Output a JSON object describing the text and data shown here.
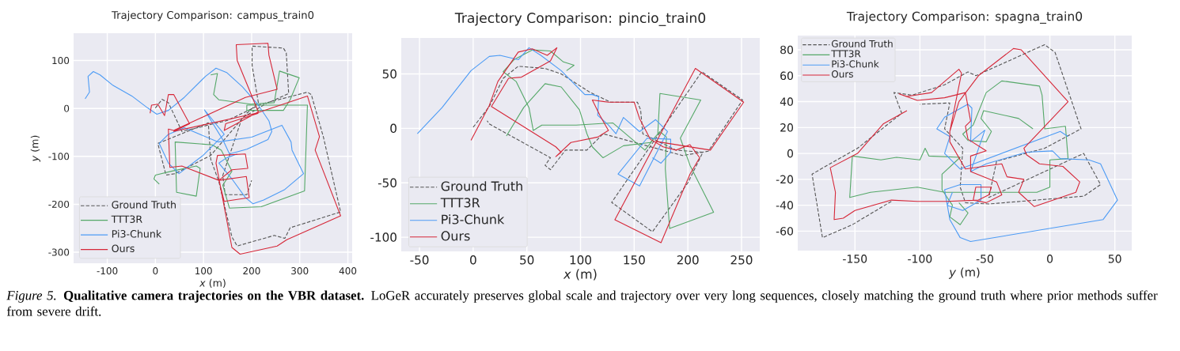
{
  "chart_data": [
    {
      "type": "line",
      "title": "Trajectory Comparison: campus_train0",
      "xlabel": "*x* (m)",
      "ylabel": "*y* (m)",
      "xlim": [
        -170,
        409
      ],
      "ylim": [
        -323,
        157
      ],
      "xticks": [
        -100,
        0,
        100,
        200,
        300,
        400
      ],
      "yticks": [
        -300,
        -200,
        -100,
        0,
        100
      ],
      "grid": true,
      "legend": "bottom left",
      "annotations": [
        "*Figure 5.* **Qualitative camera trajectories on the VBR dataset.** LoGeR accurately preserves global scale and trajectory over very long sequences, closely matching the ground truth where prior methods suffer from severe drift."
      ],
      "series": [
        {
          "name": "Ground Truth",
          "color": "#555555",
          "line_style": "dashed",
          "x": [
            0,
            14,
            27,
            55,
            150,
            220,
            316,
            324,
            349,
            385,
            280,
            269,
            247,
            170,
            159,
            132,
            115,
            110,
            5,
            22,
            41,
            115,
            190,
            214,
            201,
            201,
            266,
            272,
            277,
            230,
            180,
            140,
            145,
            190,
            200
          ],
          "values": [
            1,
            19,
            12,
            -48,
            -25,
            9,
            34,
            29,
            -59,
            -216,
            -249,
            -271,
            -265,
            -287,
            -268,
            -153,
            -106,
            -30,
            -73,
            -139,
            -136,
            -98,
            -10,
            12,
            90,
            130,
            126,
            116,
            31,
            10,
            -20,
            -140,
            -180,
            -180,
            -150
          ]
        },
        {
          "name": "TTT3R",
          "color": "#55a868",
          "line_style": "solid",
          "x": [
            8,
            -3,
            0,
            33,
            85,
            93,
            85,
            44,
            41,
            118,
            137,
            159,
            140,
            154,
            220,
            310,
            316,
            190,
            190,
            266,
            280,
            299,
            258,
            247,
            198,
            132,
            121,
            129,
            115
          ],
          "values": [
            -158,
            -147,
            -139,
            -131,
            -120,
            -125,
            -183,
            -175,
            -70,
            -76,
            -87,
            -131,
            -160,
            -208,
            -205,
            -172,
            7,
            7,
            -4,
            -4,
            18,
            64,
            78,
            12,
            9,
            18,
            29,
            73,
            70
          ]
        },
        {
          "name": "Pi3-Chunk",
          "color": "#4c9bf5",
          "line_style": "solid",
          "x": [
            -146,
            -137,
            -140,
            -129,
            -115,
            -88,
            -49,
            -16,
            3,
            27,
            60,
            104,
            126,
            148,
            181,
            214,
            236,
            242,
            234,
            190,
            154,
            140,
            102,
            143,
            99,
            49,
            27,
            8,
            27,
            60,
            130,
            200,
            263,
            282,
            284,
            308,
            269,
            225,
            203,
            187,
            159,
            132,
            148,
            170
          ],
          "values": [
            20,
            34,
            67,
            77,
            70,
            48,
            26,
            1,
            -12,
            -4,
            23,
            67,
            84,
            75,
            45,
            7,
            -26,
            -48,
            -65,
            -85,
            -95,
            -65,
            -3,
            -54,
            -98,
            -136,
            -114,
            -73,
            -54,
            -40,
            -70,
            -60,
            -35,
            -70,
            -87,
            -136,
            -169,
            -191,
            -199,
            -186,
            -147,
            -114,
            -103,
            -95
          ]
        },
        {
          "name": "Ours",
          "color": "#d62738",
          "line_style": "solid",
          "x": [
            -11,
            -8,
            5,
            19,
            27,
            38,
            71,
            38,
            209,
            316,
            341,
            332,
            385,
            273,
            253,
            176,
            159,
            126,
            129,
            187,
            192,
            159,
            132,
            189,
            195,
            143,
            132,
            55,
            30,
            27,
            38,
            187,
            253,
            236,
            234,
            168,
            170,
            214,
            143,
            146,
            214
          ],
          "values": [
            -10,
            7,
            9,
            -15,
            29,
            29,
            -32,
            -48,
            -10,
            26,
            -59,
            -87,
            -224,
            -274,
            -287,
            -304,
            -290,
            -114,
            -98,
            -95,
            -125,
            -128,
            -150,
            -142,
            -186,
            -194,
            -150,
            -120,
            -123,
            -43,
            -46,
            23,
            40,
            111,
            136,
            133,
            100,
            -7,
            -46,
            -32,
            -10
          ]
        }
      ]
    },
    {
      "type": "line",
      "title": "Trajectory Comparison: pincio_train0",
      "xlabel": "*x* (m)",
      "xlim": [
        -67,
        267
      ],
      "ylim": [
        -113,
        83
      ],
      "xticks": [
        -50,
        0,
        50,
        100,
        150,
        200,
        250
      ],
      "yticks": [
        -100,
        -50,
        0,
        50
      ],
      "grid": true,
      "legend": "bottom left",
      "series": [
        {
          "name": "Ground Truth",
          "color": "#555555",
          "line_style": "dashed",
          "x": [
            0,
            15,
            28,
            42,
            67,
            82,
            109,
            128,
            153,
            156,
            158,
            189,
            214,
            200,
            167,
            129,
            213,
            251,
            219,
            195,
            121,
            106,
            86,
            72,
            67,
            72,
            15,
            13
          ],
          "values": [
            1,
            20,
            46,
            57,
            55,
            50,
            33,
            24,
            24,
            17,
            -5,
            -20,
            -22,
            -50,
            -95,
            -68,
            52,
            26,
            -21,
            -25,
            -5,
            -20,
            -20,
            -38,
            -34,
            -27,
            4,
            7
          ]
        },
        {
          "name": "TTT3R",
          "color": "#55a868",
          "line_style": "solid",
          "x": [
            31,
            47,
            67,
            82,
            99,
            106,
            111,
            121,
            140,
            165,
            174,
            180,
            179,
            183,
            224,
            202,
            193,
            212,
            174,
            172,
            160,
            130,
            96,
            64,
            56,
            52,
            40,
            28,
            38,
            55,
            72,
            84,
            94,
            87
          ],
          "values": [
            -7,
            19,
            41,
            38,
            17,
            -5,
            -17,
            -27,
            -16,
            -13,
            -3,
            -8,
            -37,
            -92,
            -77,
            -34,
            -9,
            26,
            32,
            -5,
            -20,
            5,
            3,
            3,
            -2,
            19,
            43,
            52,
            63,
            72,
            71,
            61,
            58,
            53
          ]
        },
        {
          "name": "Pi3-Chunk",
          "color": "#4c9bf5",
          "line_style": "solid",
          "x": [
            -52,
            -29,
            -2,
            15,
            25,
            42,
            52,
            63,
            82,
            104,
            111,
            117,
            116,
            126,
            133,
            140,
            155,
            170,
            181,
            155,
            135,
            162,
            184,
            184,
            175,
            167
          ],
          "values": [
            -5,
            19,
            53,
            66,
            67,
            63,
            74,
            67,
            53,
            31,
            31,
            29,
            12,
            3,
            -5,
            10,
            -3,
            8,
            -3,
            -53,
            -42,
            -9,
            -10,
            -22,
            -32,
            -27
          ]
        },
        {
          "name": "Ours",
          "color": "#d62738",
          "line_style": "solid",
          "x": [
            -2,
            15,
            23,
            42,
            55,
            69,
            78,
            72,
            45,
            33,
            17,
            77,
            82,
            77,
            91,
            116,
            126,
            118,
            111,
            126,
            150,
            155,
            165,
            177,
            189,
            202,
            211,
            202,
            175,
            132,
            207,
            252,
            221,
            170
          ],
          "values": [
            -11,
            21,
            43,
            70,
            73,
            67,
            74,
            62,
            47,
            46,
            20,
            -17,
            -22,
            -26,
            -13,
            -8,
            -2,
            12,
            26,
            24,
            24,
            9,
            -10,
            -17,
            -20,
            -15,
            -27,
            -42,
            -105,
            -84,
            55,
            24,
            -20,
            -12
          ]
        }
      ]
    },
    {
      "type": "line",
      "title": "Trajectory Comparison: spagna_train0",
      "xlabel": "*y* (m)",
      "xlim": [
        -194,
        63
      ],
      "ylim": [
        -75,
        91
      ],
      "xticks": [
        -150,
        -100,
        -50,
        0,
        50
      ],
      "yticks": [
        -60,
        -40,
        -20,
        0,
        20,
        40,
        60,
        80
      ],
      "grid": true,
      "legend": "top left",
      "series": [
        {
          "name": "Ground Truth",
          "color": "#555555",
          "line_style": "dashed",
          "x": [
            -122,
            -152,
            -175,
            -183,
            -171,
            -148,
            -114,
            -120,
            -106,
            -81,
            -63,
            -57,
            -4,
            4,
            24,
            -4,
            -41,
            -47,
            26,
            39,
            26,
            -47,
            -65,
            -69,
            -67,
            -81,
            -77,
            -100
          ],
          "values": [
            -37,
            -55,
            -65,
            -16,
            -9,
            4,
            31,
            47,
            45,
            53,
            63,
            60,
            84,
            78,
            19,
            4,
            -6,
            -34,
            0,
            -24,
            -33,
            -39,
            -38,
            -26,
            4,
            19,
            39,
            38
          ]
        },
        {
          "name": "TTT3R",
          "color": "#55a868",
          "line_style": "solid",
          "x": [
            -13,
            -24,
            -51,
            -53,
            -45,
            -49,
            -63,
            -67,
            -59,
            -49,
            -37,
            -8,
            -6,
            -4,
            12,
            14,
            0,
            0,
            -10,
            -81,
            -102,
            -138,
            -154,
            -152,
            -130,
            -118,
            -100,
            -96,
            -93,
            -69,
            -83,
            -83,
            -75,
            -77,
            -69,
            -63,
            -70
          ],
          "values": [
            19,
            27,
            33,
            27,
            17,
            9,
            10,
            15,
            22,
            47,
            56,
            52,
            45,
            19,
            21,
            -4,
            -5,
            -26,
            -30,
            -30,
            -26,
            -30,
            -34,
            -2,
            -5,
            -3,
            -5,
            4,
            -2,
            -3,
            -16,
            -28,
            -40,
            -49,
            -55,
            -46,
            -38
          ]
        },
        {
          "name": "Pi3-Chunk",
          "color": "#4c9bf5",
          "line_style": "solid",
          "x": [
            14,
            8,
            -69,
            -81,
            -77,
            -87,
            -81,
            -63,
            -60,
            -61,
            -50,
            -61,
            -49,
            -18,
            2,
            8,
            30,
            39,
            52,
            41,
            -61,
            -69,
            -77,
            -81,
            -69,
            -53,
            -53,
            -67,
            -79,
            -75
          ],
          "values": [
            13,
            17,
            -12,
            0,
            13,
            19,
            28,
            38,
            35,
            9,
            18,
            -14,
            -8,
            1,
            2,
            -4,
            -5,
            -8,
            -36,
            -51,
            -68,
            -65,
            -51,
            -28,
            -24,
            -24,
            -36,
            -44,
            -40,
            -30
          ]
        },
        {
          "name": "Ours",
          "color": "#d62738",
          "line_style": "solid",
          "x": [
            -110,
            -128,
            -148,
            -169,
            -165,
            -166,
            -159,
            -150,
            -122,
            -102,
            -79,
            -55,
            -47,
            -45,
            -57,
            -59,
            -49,
            -37,
            -41,
            -61,
            -61,
            -49,
            -63,
            -65,
            -61,
            -65,
            -81,
            -102,
            -116,
            -110,
            -91,
            -70,
            -68,
            -77,
            -77,
            -65,
            -37,
            -33,
            -20,
            -24,
            -12,
            20,
            23,
            10,
            -8,
            -18,
            -20,
            14,
            -22,
            -28,
            -55,
            -70,
            -77
          ],
          "values": [
            33,
            23,
            0,
            -11,
            -30,
            -51,
            -50,
            -44,
            -36,
            -37,
            -37,
            -36,
            -32,
            -26,
            -26,
            -36,
            -38,
            -32,
            -22,
            -14,
            -2,
            2,
            11,
            21,
            25,
            47,
            43,
            41,
            46,
            44,
            47,
            65,
            62,
            17,
            9,
            -12,
            -8,
            -18,
            -20,
            -30,
            -41,
            -30,
            -22,
            -10,
            -8,
            -1,
            4,
            40,
            80,
            81,
            60,
            40,
            17
          ]
        }
      ]
    }
  ]
}
